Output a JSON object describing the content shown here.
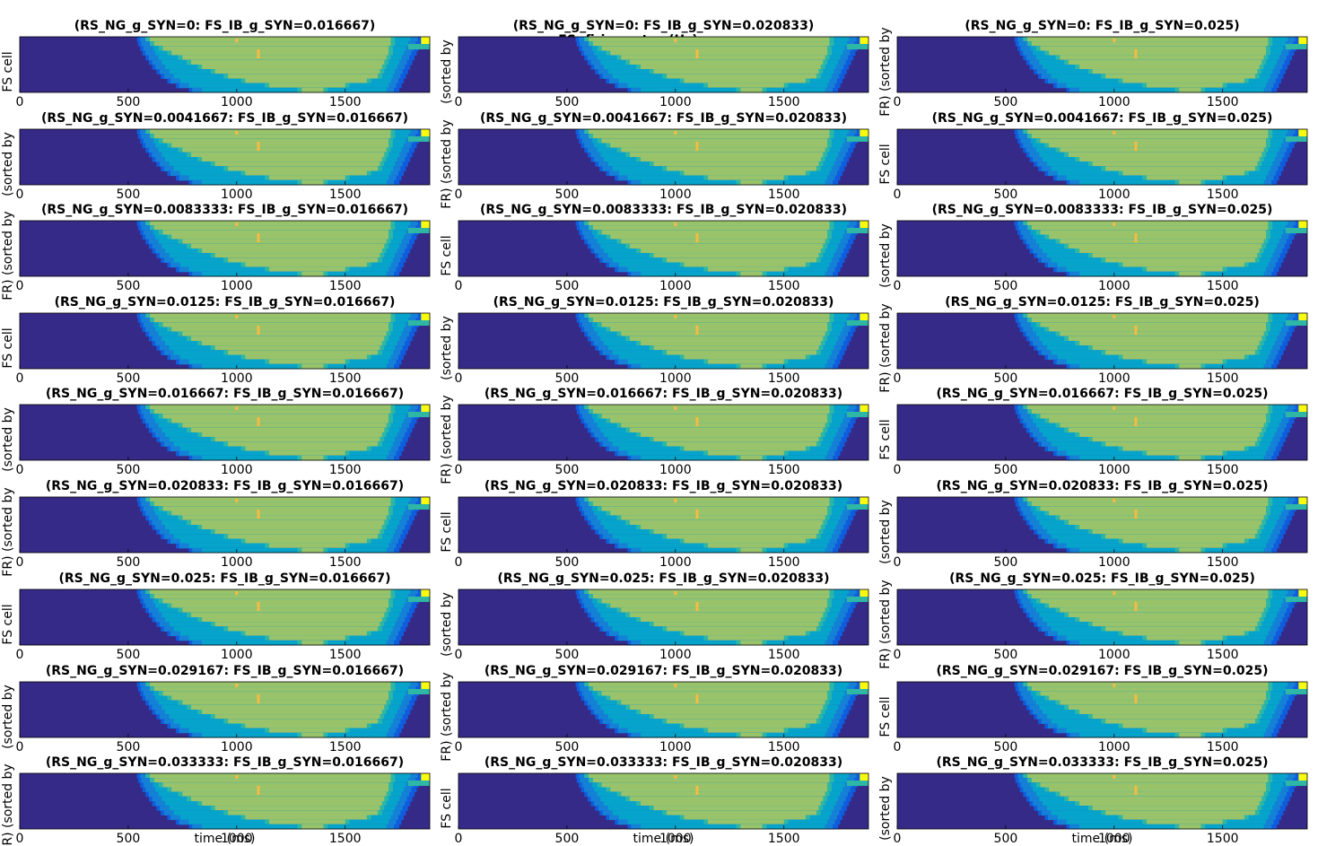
{
  "figure": {
    "suptitle": "FS: firing rates (Hz)",
    "xlabel": "time (ms)",
    "ylabel": "cell index (sorted by",
    "ylabel_fragments": [
      "FS cell",
      "(sorted by",
      "FR) (sorted by"
    ]
  },
  "colors": {
    "background": "#ffffff",
    "low": "#352a87",
    "low_mid": "#0f5cdd",
    "mid": "#1481d6",
    "mid_high": "#06a4ca",
    "high": "#2eb7a4",
    "plateau": "#98c36b",
    "peak": "#f8ba43",
    "max": "#f9fb0e",
    "axis": "#000000"
  },
  "chart_data": {
    "type": "heatmap",
    "title": "FS: firing rates (Hz)",
    "xlabel": "time (ms)",
    "ylabel": "cell index (sorted by",
    "xlim": [
      0,
      1890
    ],
    "xticks": [
      0,
      500,
      1000,
      1500
    ],
    "grid": false,
    "rows": [
      "0",
      "0.0041667",
      "0.0083333",
      "0.0125",
      "0.016667",
      "0.020833",
      "0.025",
      "0.029167",
      "0.033333"
    ],
    "cols": [
      "0.016667",
      "0.020833",
      "0.025"
    ],
    "panel_titles": [
      [
        "(RS_NG_g_SYN=0: FS_IB_g_SYN=0.016667)",
        "(RS_NG_g_SYN=0: FS_IB_g_SYN=0.020833)",
        "(RS_NG_g_SYN=0: FS_IB_g_SYN=0.025)"
      ],
      [
        "(RS_NG_g_SYN=0.0041667: FS_IB_g_SYN=0.016667)",
        "(RS_NG_g_SYN=0.0041667: FS_IB_g_SYN=0.020833)",
        "(RS_NG_g_SYN=0.0041667: FS_IB_g_SYN=0.025)"
      ],
      [
        "(RS_NG_g_SYN=0.0083333: FS_IB_g_SYN=0.016667)",
        "(RS_NG_g_SYN=0.0083333: FS_IB_g_SYN=0.020833)",
        "(RS_NG_g_SYN=0.0083333: FS_IB_g_SYN=0.025)"
      ],
      [
        "(RS_NG_g_SYN=0.0125: FS_IB_g_SYN=0.016667)",
        "(RS_NG_g_SYN=0.0125: FS_IB_g_SYN=0.020833)",
        "(RS_NG_g_SYN=0.0125: FS_IB_g_SYN=0.025)"
      ],
      [
        "(RS_NG_g_SYN=0.016667: FS_IB_g_SYN=0.016667)",
        "(RS_NG_g_SYN=0.016667: FS_IB_g_SYN=0.020833)",
        "(RS_NG_g_SYN=0.016667: FS_IB_g_SYN=0.025)"
      ],
      [
        "(RS_NG_g_SYN=0.020833: FS_IB_g_SYN=0.016667)",
        "(RS_NG_g_SYN=0.020833: FS_IB_g_SYN=0.020833)",
        "(RS_NG_g_SYN=0.020833: FS_IB_g_SYN=0.025)"
      ],
      [
        "(RS_NG_g_SYN=0.025: FS_IB_g_SYN=0.016667)",
        "(RS_NG_g_SYN=0.025: FS_IB_g_SYN=0.020833)",
        "(RS_NG_g_SYN=0.025: FS_IB_g_SYN=0.025)"
      ],
      [
        "(RS_NG_g_SYN=0.029167: FS_IB_g_SYN=0.016667)",
        "(RS_NG_g_SYN=0.029167: FS_IB_g_SYN=0.020833)",
        "(RS_NG_g_SYN=0.029167: FS_IB_g_SYN=0.025)"
      ],
      [
        "(RS_NG_g_SYN=0.033333: FS_IB_g_SYN=0.016667)",
        "(RS_NG_g_SYN=0.033333: FS_IB_g_SYN=0.020833)",
        "(RS_NG_g_SYN=0.033333: FS_IB_g_SYN=0.025)"
      ]
    ],
    "heatmap_pattern": {
      "note": "approximate per-row onset and offset times (ms) of each firing-rate level; identical across panels",
      "time_bins": [
        0,
        50,
        100,
        150,
        200,
        250,
        300,
        350,
        400,
        450,
        500,
        550,
        600,
        650,
        700,
        750,
        800,
        850,
        900,
        950,
        1000,
        1050,
        1100,
        1150,
        1200,
        1250,
        1300,
        1350,
        1400,
        1450,
        1500,
        1550,
        1600,
        1650,
        1700,
        1750,
        1800,
        1850
      ],
      "cells": 12,
      "levels": [
        "low",
        "low_mid",
        "mid",
        "mid_high",
        "high",
        "plateau",
        "peak",
        "max"
      ],
      "rows": [
        {
          "cell": 1,
          "onset_ms": 540,
          "plateau_on_ms": 600,
          "plateau_off_ms": 1710,
          "offset_ms": 1860
        },
        {
          "cell": 2,
          "onset_ms": 545,
          "plateau_on_ms": 620,
          "plateau_off_ms": 1710,
          "offset_ms": 1850
        },
        {
          "cell": 3,
          "onset_ms": 555,
          "plateau_on_ms": 660,
          "plateau_off_ms": 1700,
          "offset_ms": 1840
        },
        {
          "cell": 4,
          "onset_ms": 565,
          "plateau_on_ms": 700,
          "plateau_off_ms": 1700,
          "offset_ms": 1830
        },
        {
          "cell": 5,
          "onset_ms": 580,
          "plateau_on_ms": 750,
          "plateau_off_ms": 1690,
          "offset_ms": 1820
        },
        {
          "cell": 6,
          "onset_ms": 595,
          "plateau_on_ms": 790,
          "plateau_off_ms": 1680,
          "offset_ms": 1810
        },
        {
          "cell": 7,
          "onset_ms": 610,
          "plateau_on_ms": 840,
          "plateau_off_ms": 1670,
          "offset_ms": 1800
        },
        {
          "cell": 8,
          "onset_ms": 630,
          "plateau_on_ms": 900,
          "plateau_off_ms": 1660,
          "offset_ms": 1790
        },
        {
          "cell": 9,
          "onset_ms": 650,
          "plateau_on_ms": 960,
          "plateau_off_ms": 1650,
          "offset_ms": 1780
        },
        {
          "cell": 10,
          "onset_ms": 680,
          "plateau_on_ms": 1040,
          "plateau_off_ms": 1600,
          "offset_ms": 1770
        },
        {
          "cell": 11,
          "onset_ms": 720,
          "plateau_on_ms": 1150,
          "plateau_off_ms": 1500,
          "offset_ms": 1760
        },
        {
          "cell": 12,
          "onset_ms": 780,
          "plateau_on_ms": 1300,
          "plateau_off_ms": 1400,
          "offset_ms": 1750
        }
      ],
      "peak_spots_ms": [
        1000,
        1100
      ],
      "max_corner_ms": 1850
    }
  }
}
